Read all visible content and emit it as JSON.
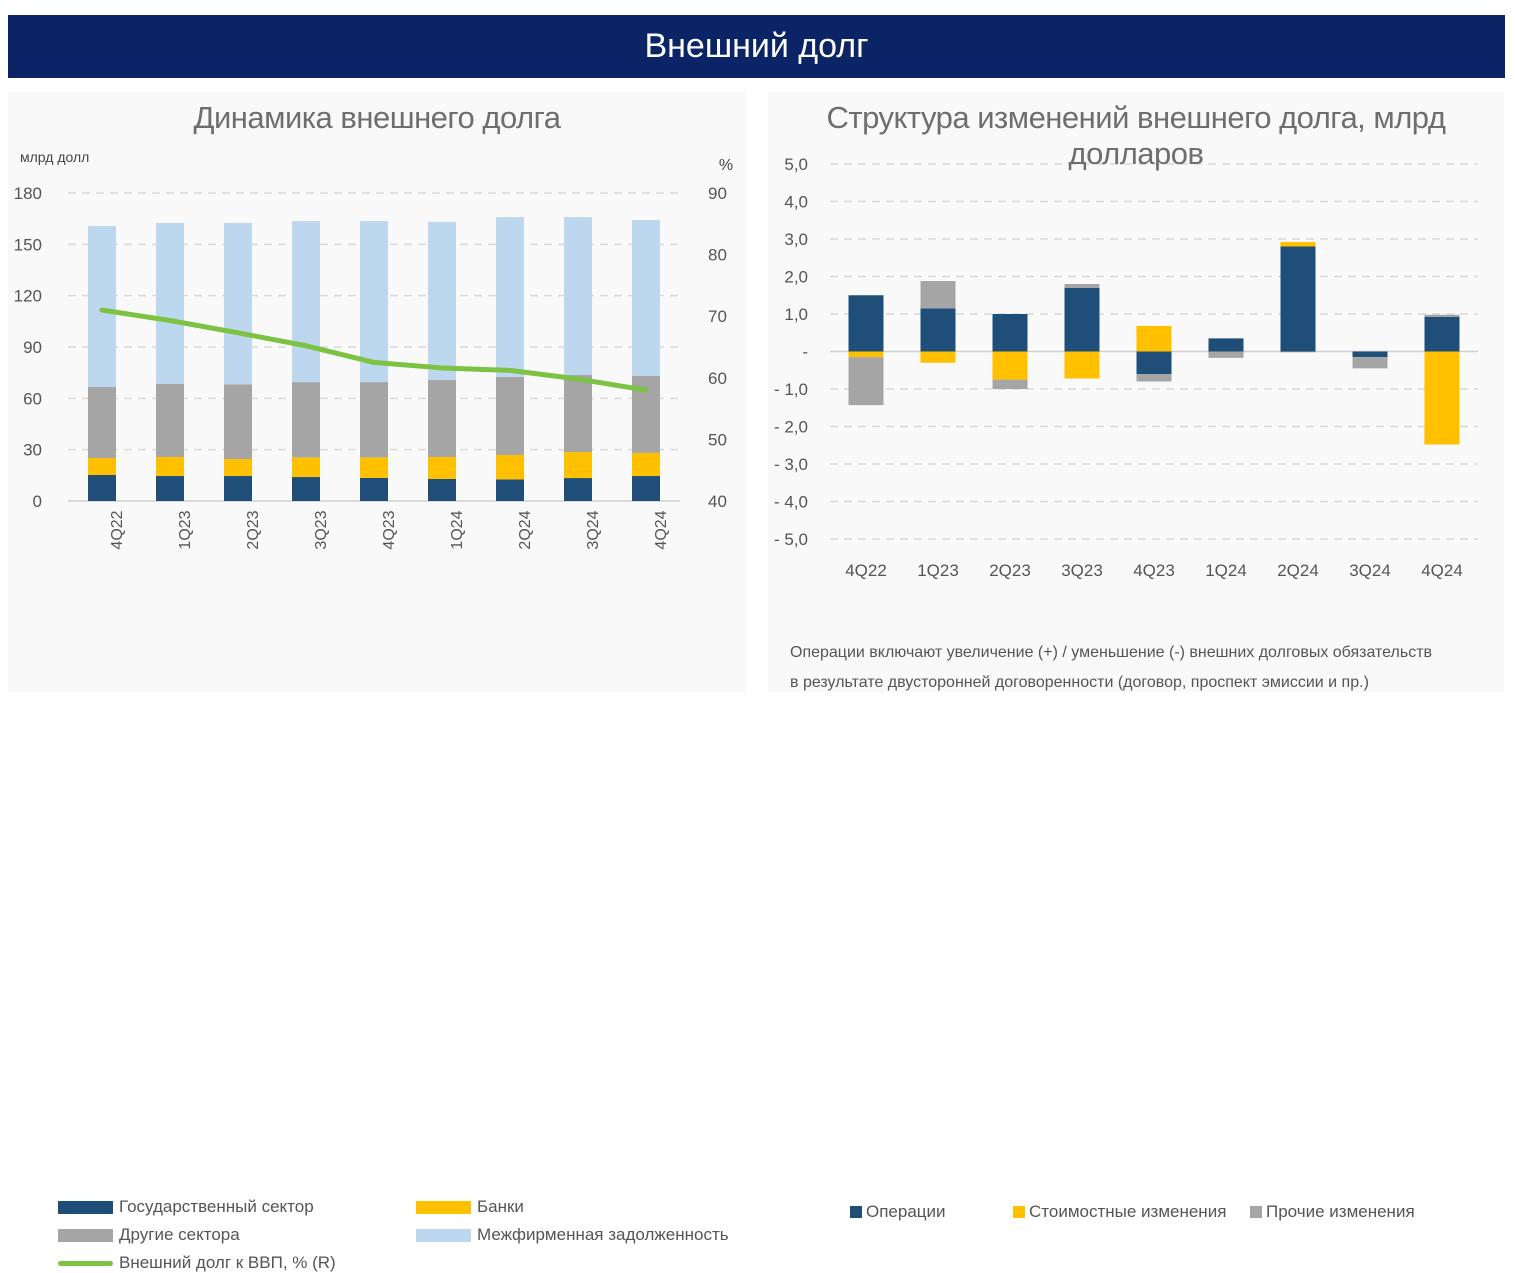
{
  "banner": {
    "title": "Внешний долг"
  },
  "colors": {
    "banner_bg": "#0b2465",
    "navy": "#1f4e79",
    "yellow": "#ffc000",
    "gray": "#a5a5a5",
    "light_blue": "#bdd7ee",
    "green": "#7dc242"
  },
  "chart_data": [
    {
      "type": "bar",
      "stacked": true,
      "title": "Динамика внешнего долга",
      "ylabel": "млрд долл",
      "y2label": "%",
      "ylim": [
        0,
        180
      ],
      "yticks": [
        "0",
        "30",
        "60",
        "90",
        "120",
        "150",
        "180"
      ],
      "y2lim": [
        40,
        90
      ],
      "y2ticks": [
        "40",
        "50",
        "60",
        "70",
        "80",
        "90"
      ],
      "grid": true,
      "categories": [
        "4Q22",
        "1Q23",
        "2Q23",
        "3Q23",
        "4Q23",
        "1Q24",
        "2Q24",
        "3Q24",
        "4Q24"
      ],
      "series": [
        {
          "name": "Государственный сектор",
          "color": "#1f4e79",
          "values": [
            15.2,
            14.6,
            14.6,
            14.0,
            13.5,
            12.9,
            12.6,
            13.4,
            14.6
          ]
        },
        {
          "name": "Банки",
          "color": "#ffc000",
          "values": [
            9.9,
            11.1,
            9.9,
            11.5,
            12.0,
            12.8,
            14.3,
            15.2,
            13.5
          ]
        },
        {
          "name": "Другие сектора",
          "color": "#a5a5a5",
          "values": [
            41.5,
            42.7,
            43.7,
            44.0,
            44.0,
            45.0,
            45.6,
            45.0,
            45.0
          ]
        },
        {
          "name": "Межфирменная задолженность",
          "color": "#bdd7ee",
          "values": [
            94.1,
            94.1,
            94.3,
            94.1,
            94.1,
            92.4,
            93.5,
            92.4,
            91.1
          ]
        }
      ],
      "line_series": {
        "name": "Внешний долг к ВВП, % (R)",
        "color": "#7dc242",
        "axis": "right",
        "values": [
          71.0,
          69.3,
          67.3,
          65.2,
          62.5,
          61.6,
          61.2,
          59.8,
          58.0
        ]
      },
      "legend_position": "bottom"
    },
    {
      "type": "bar",
      "stacked": true,
      "title": "Структура изменений внешнего долга, млрд долларов",
      "ylim": [
        -5,
        5
      ],
      "yticks": [
        "- 5,0",
        "- 4,0",
        "- 3,0",
        "- 2,0",
        "- 1,0",
        "-",
        "1,0",
        "2,0",
        "3,0",
        "4,0",
        "5,0"
      ],
      "grid": true,
      "categories": [
        "4Q22",
        "1Q23",
        "2Q23",
        "3Q23",
        "4Q23",
        "1Q24",
        "2Q24",
        "3Q24",
        "4Q24"
      ],
      "series": [
        {
          "name": "Операции",
          "color": "#1f4e79",
          "values": [
            1.5,
            1.15,
            1.0,
            1.7,
            -0.6,
            0.35,
            2.8,
            -0.15,
            0.92
          ]
        },
        {
          "name": "Стоимостные изменения",
          "color": "#ffc000",
          "values": [
            -0.15,
            -0.3,
            -0.75,
            -0.72,
            0.68,
            0.0,
            0.12,
            0.0,
            -2.48
          ]
        },
        {
          "name": "Прочие изменения",
          "color": "#a5a5a5",
          "values": [
            -1.28,
            0.73,
            -0.25,
            0.1,
            -0.2,
            -0.17,
            -0.02,
            -0.3,
            0.06
          ]
        }
      ],
      "legend_position": "bottom",
      "note": [
        "Операции включают увеличение (+) / уменьшение (-) внешних долговых обязательств",
        "в результате двусторонней договоренности (договор, проспект эмиссии и пр.)"
      ]
    }
  ]
}
